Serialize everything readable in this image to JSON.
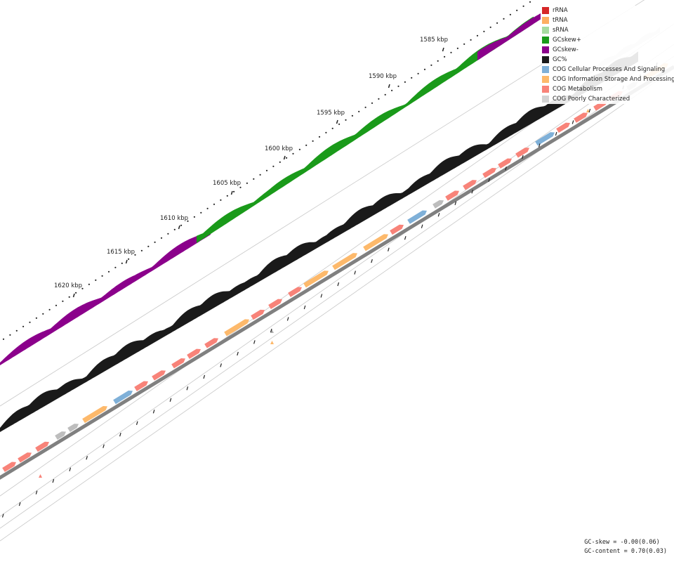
{
  "kbp_labels": [
    "1585 kbp",
    "1590 kbp",
    "1595 kbp",
    "1600 kbp",
    "1605 kbp",
    "1610 kbp",
    "1615 kbp",
    "1620 kbp"
  ],
  "legend": [
    {
      "label": "rRNA",
      "color": "#d62728"
    },
    {
      "label": "tRNA",
      "color": "#fdae61"
    },
    {
      "label": "sRNA",
      "color": "#a6dba0"
    },
    {
      "label": "GCskew+",
      "color": "#1a9a1a"
    },
    {
      "label": "GCskew-",
      "color": "#8b008b"
    },
    {
      "label": "GC%",
      "color": "#1a1a1a"
    },
    {
      "label": "COG Cellular Processes And Signaling",
      "color": "#7fb0d8"
    },
    {
      "label": "COG Information Storage And Processing",
      "color": "#fdb96b"
    },
    {
      "label": "COG Metabolism",
      "color": "#f88379"
    },
    {
      "label": "COG Poorly Characterized",
      "color": "#d3d3d3"
    }
  ],
  "stats": {
    "gc_skew": "GC-skew = -0.00(0.06)",
    "gc_content": "GC-content = 0.70(0.03)"
  },
  "colors": {
    "skew_pos": "#1a9a1a",
    "skew_neg": "#8b008b",
    "gc": "#1a1a1a",
    "baseline": "#808080",
    "cog_cellular": "#7fb0d8",
    "cog_info": "#fdb96b",
    "cog_metab": "#f88379",
    "cog_poor": "#bdbdbd"
  },
  "gene_features": [
    {
      "category": "cog_metab",
      "strand": "minus"
    },
    {
      "category": "cog_metab",
      "strand": "minus"
    },
    {
      "category": "cog_metab",
      "strand": "minus"
    },
    {
      "category": "cog_poor",
      "strand": "minus"
    },
    {
      "category": "cog_poor",
      "strand": "minus"
    },
    {
      "category": "cog_info",
      "strand": "minus"
    },
    {
      "category": "cog_cellular",
      "strand": "minus"
    },
    {
      "category": "cog_metab",
      "strand": "minus"
    },
    {
      "category": "cog_metab",
      "strand": "minus"
    },
    {
      "category": "cog_metab",
      "strand": "minus"
    },
    {
      "category": "cog_metab",
      "strand": "minus"
    },
    {
      "category": "cog_metab",
      "strand": "minus"
    },
    {
      "category": "cog_info",
      "strand": "minus"
    },
    {
      "category": "cog_metab",
      "strand": "minus"
    },
    {
      "category": "cog_metab",
      "strand": "minus"
    },
    {
      "category": "cog_metab",
      "strand": "minus"
    },
    {
      "category": "cog_info",
      "strand": "minus"
    },
    {
      "category": "cog_info",
      "strand": "minus"
    },
    {
      "category": "cog_info",
      "strand": "minus"
    },
    {
      "category": "cog_metab",
      "strand": "minus"
    },
    {
      "category": "cog_cellular",
      "strand": "minus"
    },
    {
      "category": "cog_poor",
      "strand": "minus"
    },
    {
      "category": "cog_metab",
      "strand": "minus"
    },
    {
      "category": "cog_metab",
      "strand": "minus"
    },
    {
      "category": "cog_metab",
      "strand": "minus"
    },
    {
      "category": "cog_metab",
      "strand": "minus"
    },
    {
      "category": "cog_metab",
      "strand": "minus"
    },
    {
      "category": "cog_cellular",
      "strand": "minus"
    },
    {
      "category": "cog_metab",
      "strand": "minus"
    },
    {
      "category": "cog_metab",
      "strand": "plus"
    },
    {
      "category": "cog_metab",
      "strand": "plus"
    },
    {
      "category": "cog_metab",
      "strand": "plus"
    },
    {
      "category": "cog_poor",
      "strand": "plus"
    },
    {
      "category": "cog_info",
      "strand": "plus"
    }
  ]
}
